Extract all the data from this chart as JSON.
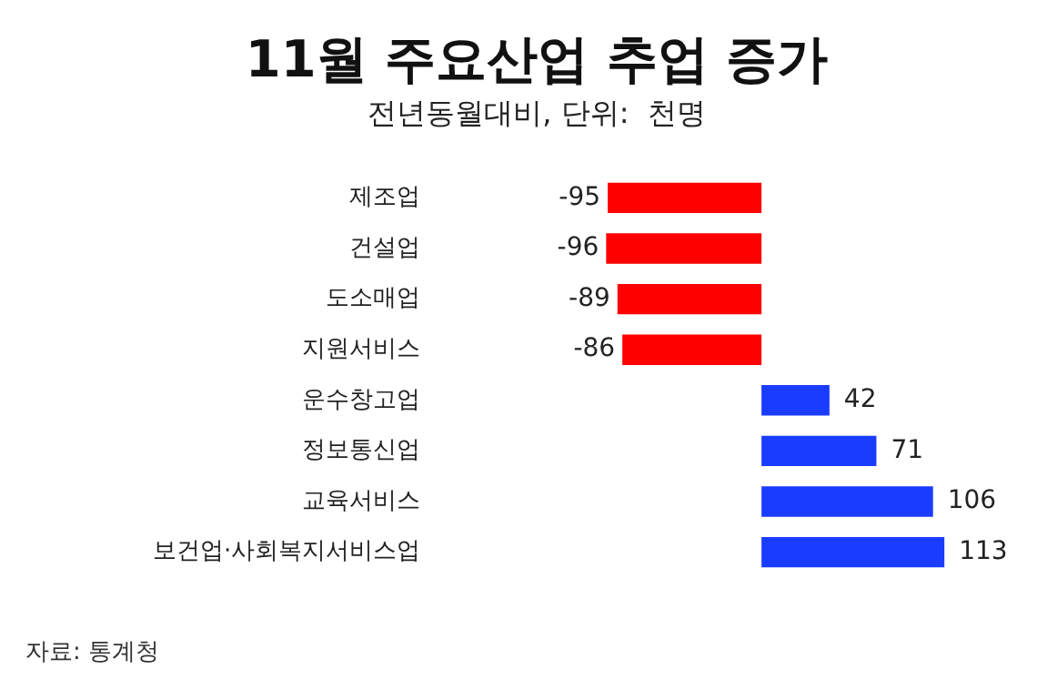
{
  "chart_data": {
    "type": "bar",
    "orientation": "horizontal",
    "title": "11월 주요산업 추업 증가",
    "subtitle": "전년동월대비, 단위:  천명",
    "categories": [
      "제조업",
      "건설업",
      "도소매업",
      "지원서비스",
      "운수창고업",
      "정보통신업",
      "교육서비스",
      "보건업·사회복지서비스업"
    ],
    "values": [
      -95,
      -96,
      -89,
      -86,
      42,
      71,
      106,
      113
    ],
    "colors": [
      "#ff0000",
      "#ff0000",
      "#ff0000",
      "#ff0000",
      "#1a3cff",
      "#1a3cff",
      "#1a3cff",
      "#1a3cff"
    ],
    "tick_labels": "y",
    "data_labels": true,
    "legend": false,
    "annotations": [
      "자료: 통계청"
    ]
  }
}
